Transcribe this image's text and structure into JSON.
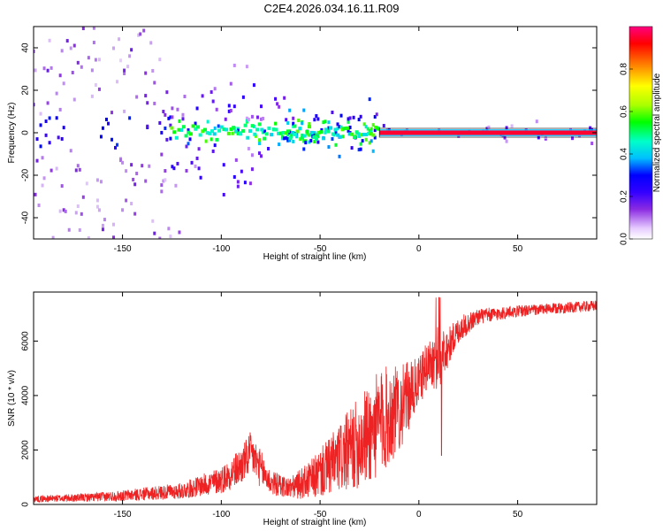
{
  "title": "C2E4.2026.034.16.11.R09",
  "chart_data": [
    {
      "type": "heatmap",
      "name": "spectrogram",
      "xlabel": "Height of straight line (km)",
      "ylabel": "Frequency (Hz)",
      "xlim": [
        -195,
        90
      ],
      "ylim": [
        -50,
        50
      ],
      "xticks": [
        -150,
        -100,
        -50,
        0,
        50
      ],
      "xtick_labels": [
        "-150",
        "-100",
        "-50",
        "0",
        "50"
      ],
      "yticks": [
        -40,
        -20,
        0,
        20,
        40
      ],
      "ytick_labels": [
        "-40",
        "-20",
        "0",
        "20",
        "40"
      ],
      "colorbar": {
        "label": "Normalized spectral amplitude",
        "range": [
          0.0,
          1.0
        ],
        "ticks": [
          0.0,
          0.2,
          0.4,
          0.6,
          0.8
        ],
        "tick_labels": [
          "0.0",
          "0.2",
          "0.4",
          "0.6",
          "0.8"
        ],
        "colors": [
          "#ffffff",
          "#e6ccff",
          "#8a2be2",
          "#3300ff",
          "#0000ff",
          "#00bfff",
          "#00ffc8",
          "#00ff00",
          "#aaff00",
          "#ffff00",
          "#ff8000",
          "#ff0000",
          "#ff0080"
        ]
      },
      "features": {
        "carrier_frequency_hz": 0,
        "strong_carrier_from_km": -20,
        "strong_carrier_to_km": 90,
        "carrier_amplitude": 0.95,
        "scintillation_region_km": [
          -125,
          -20
        ],
        "scintillation_amplitude": 0.35,
        "noise_region_km": [
          -195,
          -125
        ]
      }
    },
    {
      "type": "line",
      "name": "snr",
      "xlabel": "Height of straight line (km)",
      "ylabel": "SNR (10 * v/v)",
      "xlim": [
        -195,
        90
      ],
      "ylim": [
        0,
        7800
      ],
      "xticks": [
        -150,
        -100,
        -50,
        0,
        50
      ],
      "xtick_labels": [
        "-150",
        "-100",
        "-50",
        "0",
        "50"
      ],
      "yticks": [
        0,
        2000,
        4000,
        6000
      ],
      "ytick_labels": [
        "0",
        "2000",
        "4000",
        "6000"
      ],
      "color": "#ee2222",
      "series": [
        {
          "name": "SNR",
          "envelope_x": [
            -195,
            -170,
            -150,
            -120,
            -100,
            -90,
            -85,
            -80,
            -75,
            -65,
            -55,
            -45,
            -35,
            -25,
            -18,
            -10,
            0,
            5,
            10,
            15,
            20,
            30,
            40,
            50,
            60,
            70,
            80,
            90
          ],
          "envelope_mean": [
            200,
            250,
            320,
            500,
            900,
            1400,
            1900,
            1300,
            800,
            600,
            900,
            1400,
            2000,
            2600,
            3100,
            3500,
            4500,
            5200,
            5400,
            5800,
            6400,
            6900,
            7000,
            7100,
            7150,
            7200,
            7250,
            7300
          ],
          "envelope_spread": [
            120,
            150,
            200,
            300,
            500,
            700,
            800,
            700,
            450,
            400,
            700,
            1100,
            1500,
            1900,
            2000,
            1600,
            900,
            900,
            1200,
            700,
            500,
            300,
            250,
            220,
            200,
            200,
            200,
            200
          ]
        }
      ]
    }
  ]
}
